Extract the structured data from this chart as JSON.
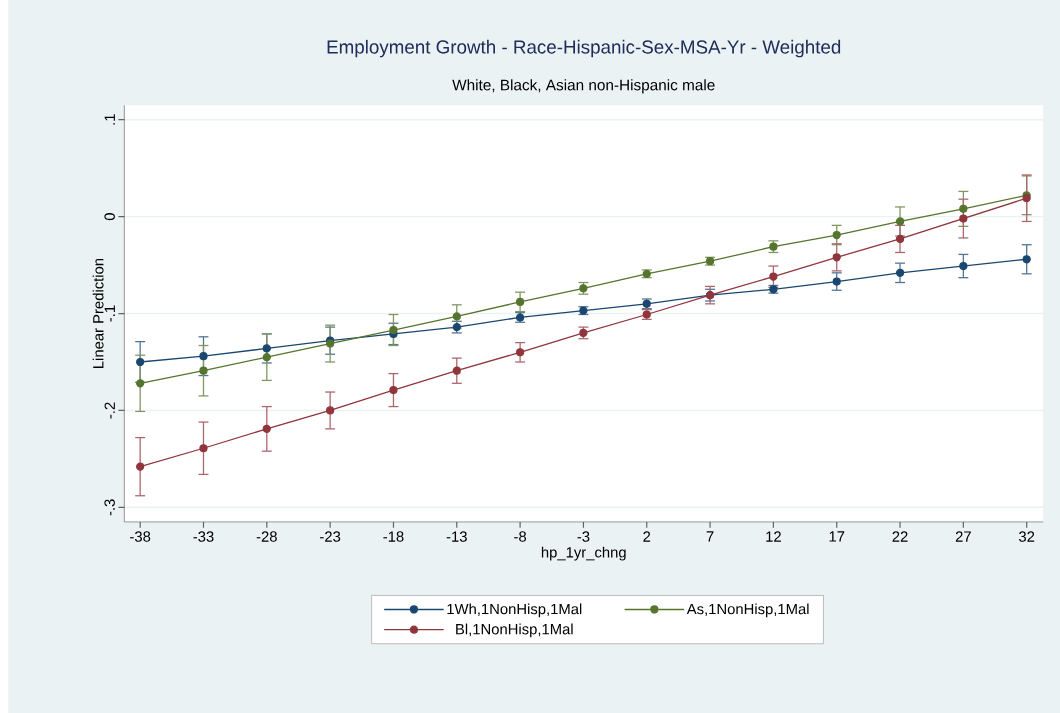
{
  "chart_data": {
    "type": "line",
    "title": "Employment Growth - Race-Hispanic-Sex-MSA-Yr - Weighted",
    "subtitle": "White, Black, Asian non-Hispanic male",
    "xlabel": "hp_1yr_chng",
    "ylabel": "Linear Prediction",
    "x": [
      -38,
      -33,
      -28,
      -23,
      -18,
      -13,
      -8,
      -3,
      2,
      7,
      12,
      17,
      22,
      27,
      32
    ],
    "series": [
      {
        "name": "1Wh,1NonHisp,1Mal",
        "color": "#1a476f",
        "values": [
          -0.15,
          -0.144,
          -0.136,
          -0.128,
          -0.121,
          -0.114,
          -0.104,
          -0.097,
          -0.09,
          -0.081,
          -0.075,
          -0.067,
          -0.058,
          -0.051,
          -0.044
        ],
        "errors": [
          0.021,
          0.02,
          0.015,
          0.014,
          0.011,
          0.006,
          0.005,
          0.004,
          0.005,
          0.006,
          0.004,
          0.009,
          0.01,
          0.012,
          0.015
        ]
      },
      {
        "name": "As,1NonHisp,1Mal",
        "color": "#55752f",
        "values": [
          -0.172,
          -0.159,
          -0.145,
          -0.131,
          -0.117,
          -0.103,
          -0.088,
          -0.074,
          -0.059,
          -0.046,
          -0.031,
          -0.019,
          -0.005,
          0.008,
          0.022
        ],
        "errors": [
          0.029,
          0.026,
          0.024,
          0.019,
          0.016,
          0.012,
          0.01,
          0.006,
          0.004,
          0.004,
          0.006,
          0.01,
          0.015,
          0.018,
          0.02
        ]
      },
      {
        "name": "Bl,1NonHisp,1Mal",
        "color": "#90353b",
        "values": [
          -0.258,
          -0.239,
          -0.219,
          -0.2,
          -0.179,
          -0.159,
          -0.14,
          -0.12,
          -0.101,
          -0.081,
          -0.062,
          -0.042,
          -0.023,
          -0.002,
          0.019
        ],
        "errors": [
          0.03,
          0.027,
          0.023,
          0.019,
          0.017,
          0.013,
          0.01,
          0.006,
          0.005,
          0.009,
          0.011,
          0.014,
          0.014,
          0.02,
          0.024
        ]
      }
    ],
    "xlim": [
      -39.25,
      33.3
    ],
    "ylim": [
      -0.315,
      0.115
    ],
    "xticks": [
      -38,
      -33,
      -28,
      -23,
      -18,
      -13,
      -8,
      -3,
      2,
      7,
      12,
      17,
      22,
      27,
      32
    ],
    "yticks": [
      {
        "value": -0.3,
        "label": "-.3"
      },
      {
        "value": -0.2,
        "label": "-.2"
      },
      {
        "value": -0.1,
        "label": "-.1"
      },
      0,
      {
        "value": 0.1,
        "label": ".1"
      }
    ],
    "grid": "y",
    "legend": "bottom",
    "marker": "circle",
    "line_style": "solid"
  }
}
